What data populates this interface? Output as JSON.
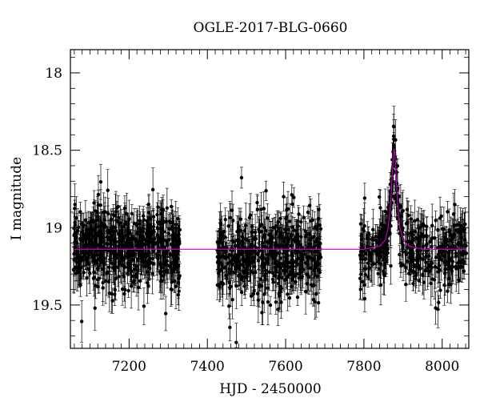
{
  "chart_data": {
    "type": "scatter",
    "title": "OGLE-2017-BLG-0660",
    "xlabel": "HJD - 2450000",
    "ylabel": "I magnitude",
    "xlim": [
      7050,
      8068
    ],
    "ylim": [
      19.78,
      17.85
    ],
    "y_inverted": true,
    "grid": false,
    "x_ticks": [
      7200,
      7400,
      7600,
      7800,
      8000
    ],
    "y_ticks": [
      18,
      18.5,
      19,
      19.5
    ],
    "x_tick_labels": [
      "7200",
      "7400",
      "7600",
      "7800",
      "8000"
    ],
    "y_tick_labels": [
      "18",
      "18.5",
      "19",
      "19.5"
    ],
    "data_color": "#000000",
    "model_color": "#cc00cc",
    "seasons": [
      {
        "x_start": 7058,
        "x_end": 7330,
        "baseline_mag": 19.12,
        "scatter": 0.13,
        "n_points": 620
      },
      {
        "x_start": 7425,
        "x_end": 7690,
        "baseline_mag": 19.17,
        "scatter": 0.14,
        "n_points": 520
      },
      {
        "x_start": 7790,
        "x_end": 8062,
        "baseline_mag": 19.16,
        "scatter": 0.12,
        "n_points": 420
      }
    ],
    "series": [
      {
        "name": "",
        "kind": "model",
        "x": [
          7060,
          7300,
          7600,
          7800,
          7840,
          7855,
          7862,
          7868,
          7872,
          7875,
          7877,
          7879,
          7882,
          7886,
          7892,
          7900,
          7915,
          7950,
          8060
        ],
        "y": [
          19.14,
          19.14,
          19.14,
          19.14,
          19.12,
          19.08,
          19.0,
          18.85,
          18.68,
          18.55,
          18.49,
          18.52,
          18.65,
          18.85,
          19.0,
          19.08,
          19.12,
          19.14,
          19.14
        ]
      }
    ],
    "peak": {
      "x": 7877,
      "mag": 18.43
    }
  }
}
